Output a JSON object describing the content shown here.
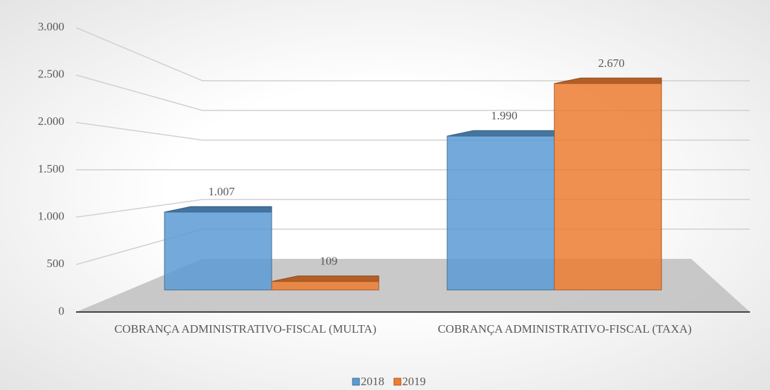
{
  "chart_data": {
    "type": "bar3d",
    "categories": [
      "COBRANÇA ADMINISTRATIVO-FISCAL (MULTA)",
      "COBRANÇA ADMINISTRATIVO-FISCAL (TAXA)"
    ],
    "series": [
      {
        "name": "2018",
        "color": "#5b9bd5",
        "values": [
          1007,
          1990
        ],
        "value_labels": [
          "1.007",
          "1.990"
        ]
      },
      {
        "name": "2019",
        "color": "#ed7d31",
        "values": [
          109,
          2670
        ],
        "value_labels": [
          "109",
          "2.670"
        ]
      }
    ],
    "ylim": [
      0,
      3000
    ],
    "yticks": [
      0,
      500,
      {
        "value": 1000,
        "label": "1.000"
      },
      {
        "value": 1500,
        "label": "1.500"
      },
      {
        "value": 2000,
        "label": "2.000"
      },
      {
        "value": 2500,
        "label": "2.500"
      },
      {
        "value": 3000,
        "label": "3.000"
      }
    ],
    "grid": true,
    "legend": "bottom"
  }
}
